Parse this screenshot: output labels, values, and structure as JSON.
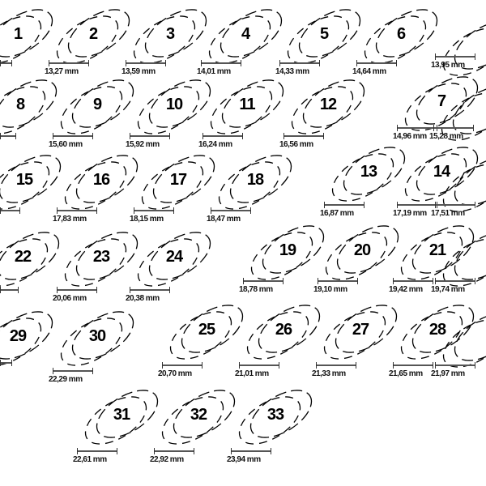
{
  "sizes": [
    {
      "number": "1",
      "measure": ""
    },
    {
      "number": "2",
      "measure": "13,27 mm"
    },
    {
      "number": "3",
      "measure": "13,59 mm"
    },
    {
      "number": "4",
      "measure": "14,01 mm"
    },
    {
      "number": "5",
      "measure": "14,33 mm"
    },
    {
      "number": "6",
      "measure": "14,64 mm"
    },
    {
      "number": "",
      "measure": "13,95 mm"
    },
    {
      "number": "8",
      "measure": ""
    },
    {
      "number": "9",
      "measure": "15,60 mm"
    },
    {
      "number": "10",
      "measure": "15,92 mm"
    },
    {
      "number": "11",
      "measure": "16,24 mm"
    },
    {
      "number": "12",
      "measure": "16,56 mm"
    },
    {
      "number": "7",
      "measure": "14,96 mm"
    },
    {
      "number": "",
      "measure": "15,28 mm"
    },
    {
      "number": "15",
      "measure": ""
    },
    {
      "number": "16",
      "measure": "17,83 mm"
    },
    {
      "number": "17",
      "measure": "18,15 mm"
    },
    {
      "number": "18",
      "measure": "18,47 mm"
    },
    {
      "number": "13",
      "measure": "16,87 mm"
    },
    {
      "number": "14",
      "measure": "17,19 mm"
    },
    {
      "number": "",
      "measure": "17,51 mm"
    },
    {
      "number": "22",
      "measure": ""
    },
    {
      "number": "23",
      "measure": "20,06 mm"
    },
    {
      "number": "24",
      "measure": "20,38 mm"
    },
    {
      "number": "19",
      "measure": "18,78 mm"
    },
    {
      "number": "20",
      "measure": "19,10 mm"
    },
    {
      "number": "21",
      "measure": "19,42 mm"
    },
    {
      "number": "",
      "measure": "19,74 mm"
    },
    {
      "number": "29",
      "measure": ""
    },
    {
      "number": "30",
      "measure": "22,29 mm"
    },
    {
      "number": "25",
      "measure": "20,70 mm"
    },
    {
      "number": "26",
      "measure": "21,01 mm"
    },
    {
      "number": "27",
      "measure": "21,33 mm"
    },
    {
      "number": "28",
      "measure": "21,65 mm"
    },
    {
      "number": "",
      "measure": "21,97 mm"
    },
    {
      "number": "31",
      "measure": "22,61 mm"
    },
    {
      "number": "32",
      "measure": "22,92 mm"
    },
    {
      "number": "33",
      "measure": "23,94 mm"
    }
  ]
}
